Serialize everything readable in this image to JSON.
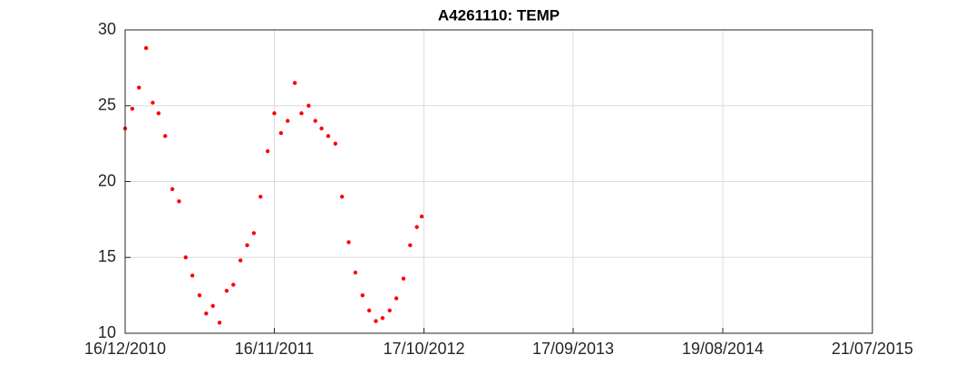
{
  "chart_data": {
    "type": "scatter",
    "title": "A4261110: TEMP",
    "x": [
      "2010-12-16",
      "2011-01-01",
      "2011-01-16",
      "2011-02-01",
      "2011-02-16",
      "2011-03-01",
      "2011-03-16",
      "2011-04-01",
      "2011-04-16",
      "2011-05-01",
      "2011-05-16",
      "2011-06-01",
      "2011-06-16",
      "2011-07-01",
      "2011-07-16",
      "2011-08-01",
      "2011-08-16",
      "2011-09-01",
      "2011-09-16",
      "2011-10-01",
      "2011-10-16",
      "2011-11-01",
      "2011-11-16",
      "2011-12-01",
      "2011-12-16",
      "2012-01-01",
      "2012-01-16",
      "2012-02-01",
      "2012-02-16",
      "2012-03-01",
      "2012-03-16",
      "2012-04-01",
      "2012-04-16",
      "2012-05-01",
      "2012-05-16",
      "2012-06-01",
      "2012-06-16",
      "2012-07-01",
      "2012-07-16",
      "2012-08-01",
      "2012-08-16",
      "2012-09-01",
      "2012-09-16",
      "2012-10-01",
      "2012-10-12"
    ],
    "values": [
      23.5,
      24.8,
      26.2,
      28.8,
      25.2,
      24.5,
      23.0,
      19.5,
      18.7,
      15.0,
      13.8,
      12.5,
      11.3,
      11.8,
      10.7,
      12.8,
      13.2,
      14.8,
      15.8,
      16.6,
      19.0,
      22.0,
      24.5,
      23.2,
      24.0,
      26.5,
      24.5,
      25.0,
      24.0,
      23.5,
      23.0,
      22.5,
      19.0,
      16.0,
      14.0,
      12.5,
      11.5,
      10.8,
      11.0,
      11.5,
      12.3,
      13.6,
      15.8,
      17.0,
      17.7
    ],
    "color": "#ff0000",
    "xlim": [
      "2010-12-16",
      "2015-07-21"
    ],
    "xticks": [
      {
        "value": "2010-12-16",
        "label": "16/12/2010"
      },
      {
        "value": "2011-11-16",
        "label": "16/11/2011"
      },
      {
        "value": "2012-10-17",
        "label": "17/10/2012"
      },
      {
        "value": "2013-09-17",
        "label": "17/09/2013"
      },
      {
        "value": "2014-08-19",
        "label": "19/08/2014"
      },
      {
        "value": "2015-07-21",
        "label": "21/07/2015"
      }
    ],
    "ylim": [
      10,
      30
    ],
    "yticks": [
      10,
      15,
      20,
      25,
      30
    ],
    "grid": true
  }
}
